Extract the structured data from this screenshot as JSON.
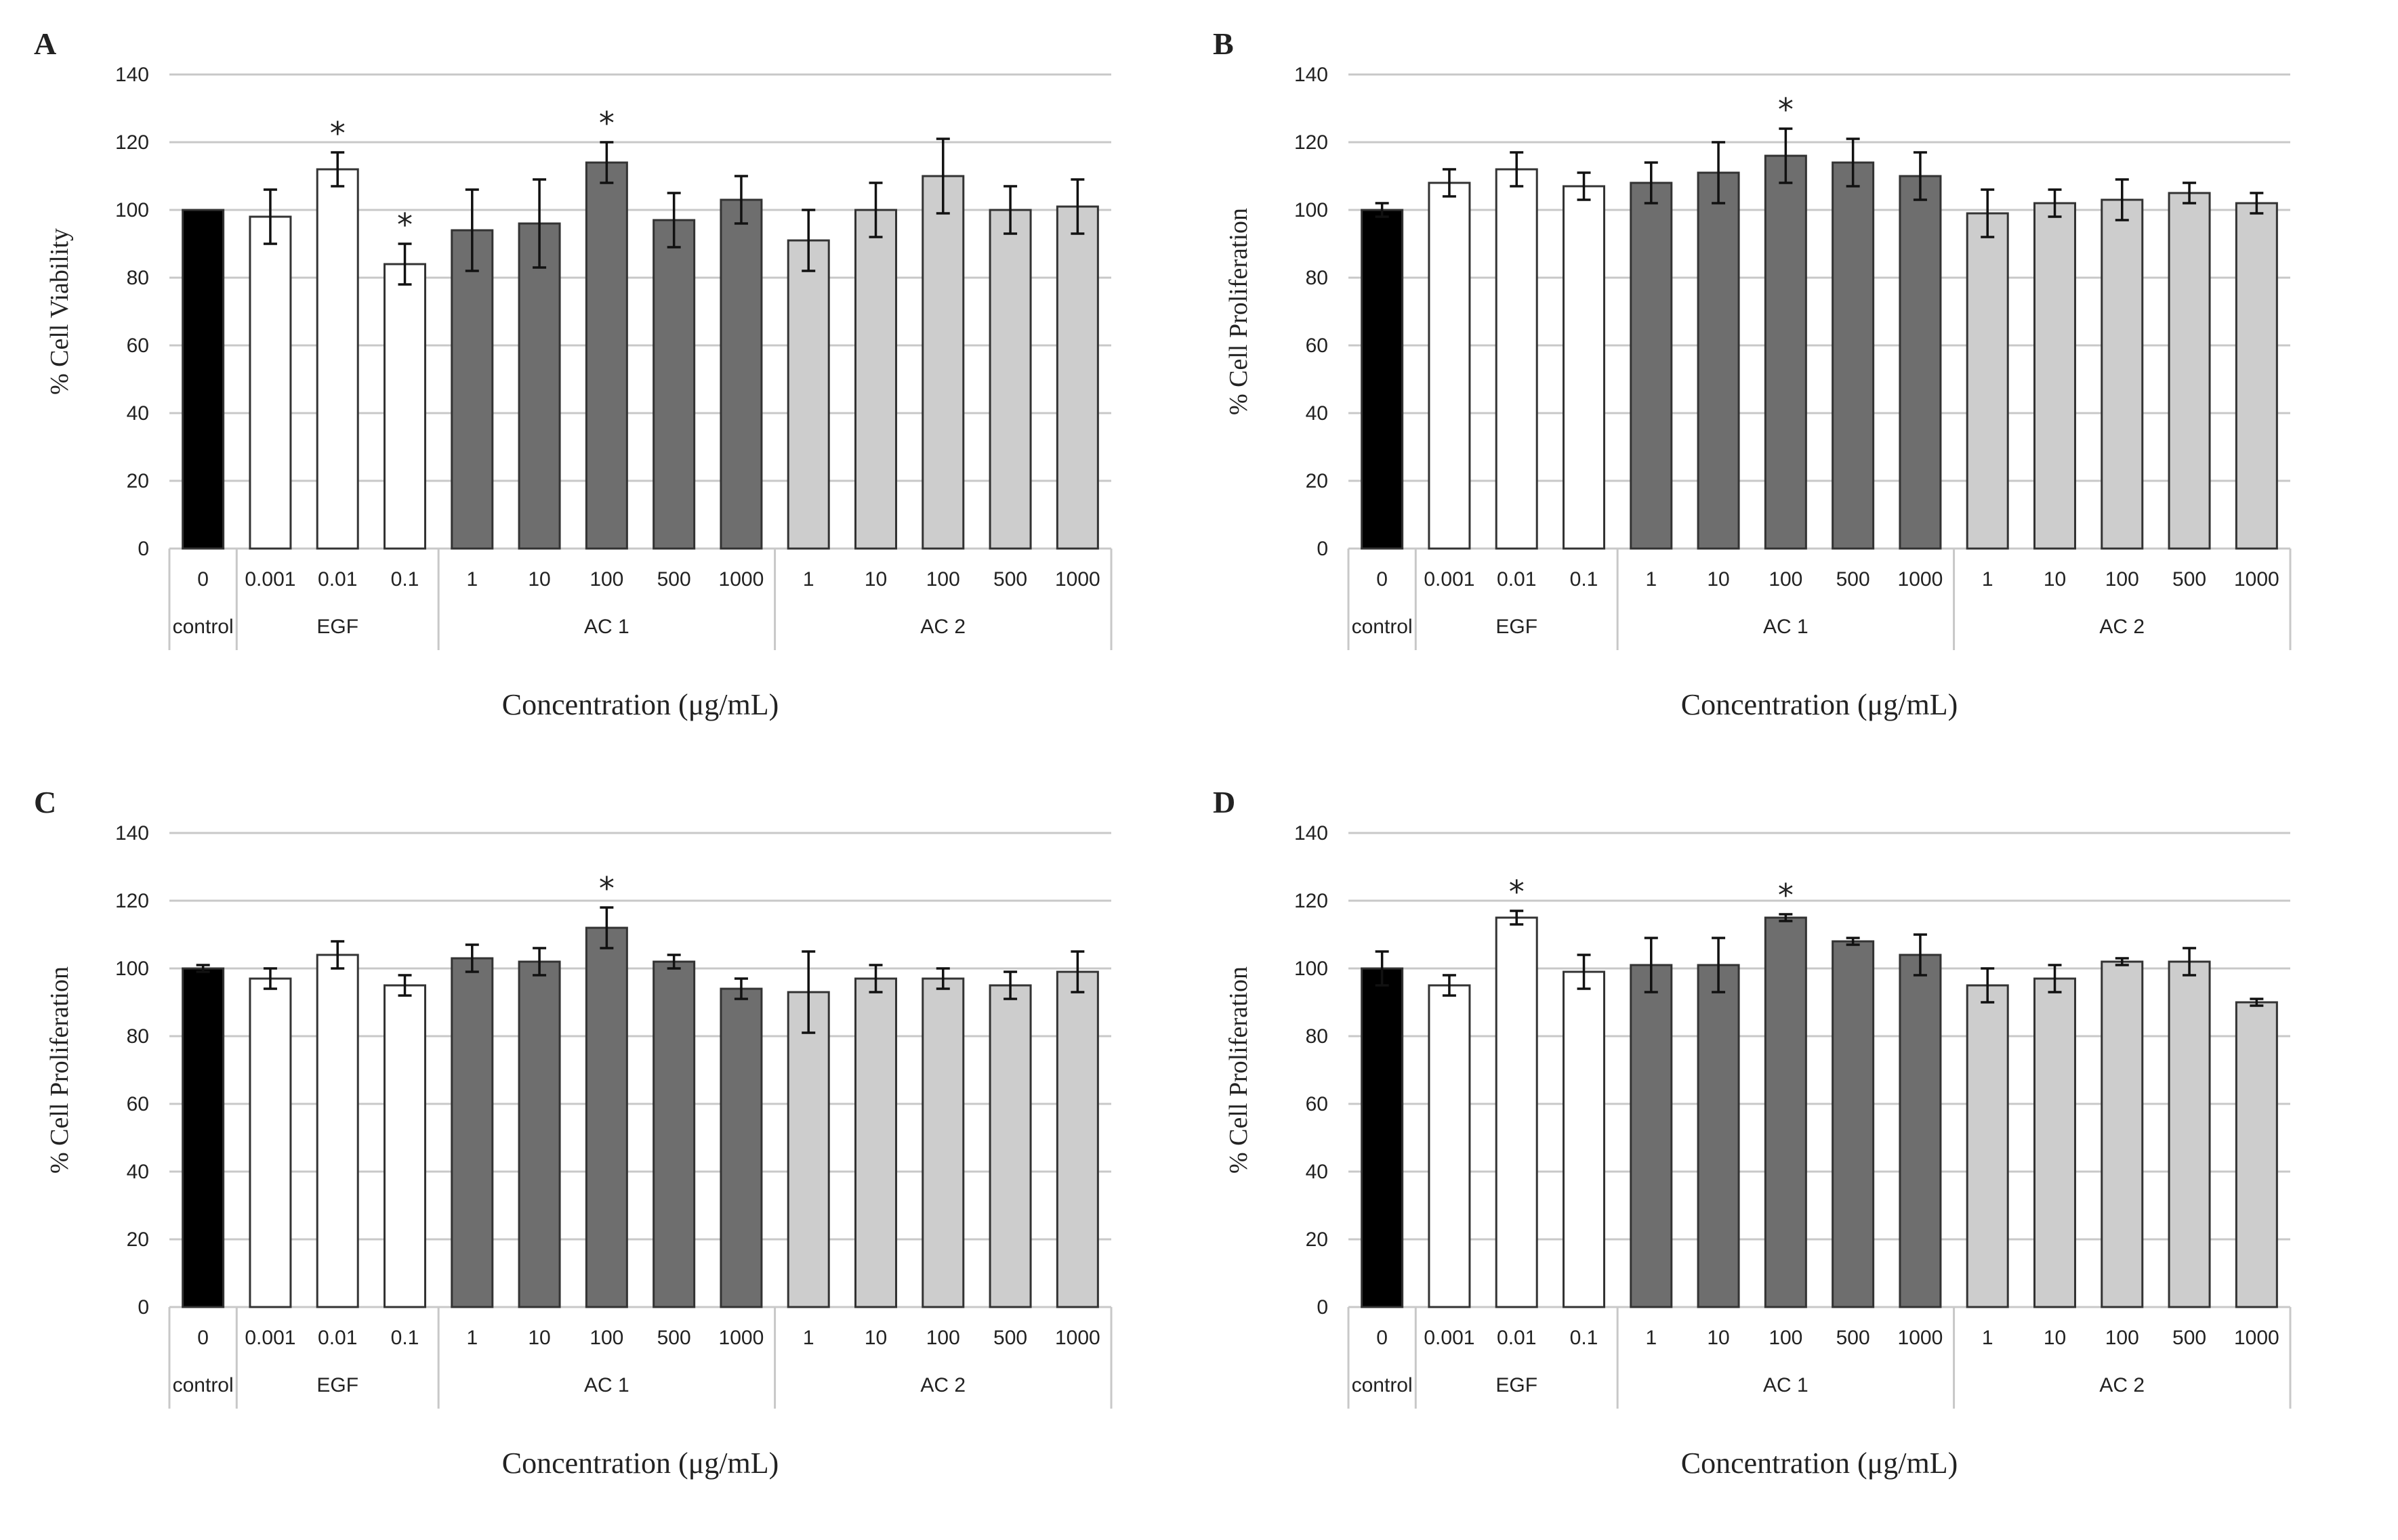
{
  "colors": {
    "control": "#000000",
    "EGF": "#ffffff",
    "AC 1": "#6e6e6e",
    "AC 2": "#cdcdcd",
    "grid": "#c8c8c8"
  },
  "chart_data": [
    {
      "panel": "A",
      "type": "bar",
      "ylabel": "% Cell Viability",
      "xlabel": "Concentration (μg/mL)",
      "ylim": [
        0,
        140
      ],
      "yticks": [
        0,
        20,
        40,
        60,
        80,
        100,
        120,
        140
      ],
      "groups": [
        {
          "name": "control",
          "categories": [
            "0"
          ],
          "values": [
            100
          ],
          "errors": [
            0
          ],
          "sig": [
            false
          ]
        },
        {
          "name": "EGF",
          "categories": [
            "0.001",
            "0.01",
            "0.1"
          ],
          "values": [
            98,
            112,
            84
          ],
          "errors": [
            8,
            5,
            6
          ],
          "sig": [
            false,
            true,
            true
          ]
        },
        {
          "name": "AC 1",
          "categories": [
            "1",
            "10",
            "100",
            "500",
            "1000"
          ],
          "values": [
            94,
            96,
            114,
            97,
            103
          ],
          "errors": [
            12,
            13,
            6,
            8,
            7
          ],
          "sig": [
            false,
            false,
            true,
            false,
            false
          ]
        },
        {
          "name": "AC 2",
          "categories": [
            "1",
            "10",
            "100",
            "500",
            "1000"
          ],
          "values": [
            91,
            100,
            110,
            100,
            101
          ],
          "errors": [
            9,
            8,
            11,
            7,
            8
          ],
          "sig": [
            false,
            false,
            false,
            false,
            false
          ]
        }
      ]
    },
    {
      "panel": "B",
      "type": "bar",
      "ylabel": "% Cell Proliferation",
      "xlabel": "Concentration (μg/mL)",
      "ylim": [
        0,
        140
      ],
      "yticks": [
        0,
        20,
        40,
        60,
        80,
        100,
        120,
        140
      ],
      "groups": [
        {
          "name": "control",
          "categories": [
            "0"
          ],
          "values": [
            100
          ],
          "errors": [
            2
          ],
          "sig": [
            false
          ]
        },
        {
          "name": "EGF",
          "categories": [
            "0.001",
            "0.01",
            "0.1"
          ],
          "values": [
            108,
            112,
            107
          ],
          "errors": [
            4,
            5,
            4
          ],
          "sig": [
            false,
            false,
            false
          ]
        },
        {
          "name": "AC 1",
          "categories": [
            "1",
            "10",
            "100",
            "500",
            "1000"
          ],
          "values": [
            108,
            111,
            116,
            114,
            110
          ],
          "errors": [
            6,
            9,
            8,
            7,
            7
          ],
          "sig": [
            false,
            false,
            true,
            false,
            false
          ]
        },
        {
          "name": "AC 2",
          "categories": [
            "1",
            "10",
            "100",
            "500",
            "1000"
          ],
          "values": [
            99,
            102,
            103,
            105,
            102
          ],
          "errors": [
            7,
            4,
            6,
            3,
            3
          ],
          "sig": [
            false,
            false,
            false,
            false,
            false
          ]
        }
      ]
    },
    {
      "panel": "C",
      "type": "bar",
      "ylabel": "% Cell Proliferation",
      "xlabel": "Concentration (μg/mL)",
      "ylim": [
        0,
        140
      ],
      "yticks": [
        0,
        20,
        40,
        60,
        80,
        100,
        120,
        140
      ],
      "groups": [
        {
          "name": "control",
          "categories": [
            "0"
          ],
          "values": [
            100
          ],
          "errors": [
            1
          ],
          "sig": [
            false
          ]
        },
        {
          "name": "EGF",
          "categories": [
            "0.001",
            "0.01",
            "0.1"
          ],
          "values": [
            97,
            104,
            95
          ],
          "errors": [
            3,
            4,
            3
          ],
          "sig": [
            false,
            false,
            false
          ]
        },
        {
          "name": "AC 1",
          "categories": [
            "1",
            "10",
            "100",
            "500",
            "1000"
          ],
          "values": [
            103,
            102,
            112,
            102,
            94
          ],
          "errors": [
            4,
            4,
            6,
            2,
            3
          ],
          "sig": [
            false,
            false,
            true,
            false,
            false
          ]
        },
        {
          "name": "AC 2",
          "categories": [
            "1",
            "10",
            "100",
            "500",
            "1000"
          ],
          "values": [
            93,
            97,
            97,
            95,
            99
          ],
          "errors": [
            12,
            4,
            3,
            4,
            6
          ],
          "sig": [
            false,
            false,
            false,
            false,
            false
          ]
        }
      ]
    },
    {
      "panel": "D",
      "type": "bar",
      "ylabel": "% Cell Proliferation",
      "xlabel": "Concentration (μg/mL)",
      "ylim": [
        0,
        140
      ],
      "yticks": [
        0,
        20,
        40,
        60,
        80,
        100,
        120,
        140
      ],
      "groups": [
        {
          "name": "control",
          "categories": [
            "0"
          ],
          "values": [
            100
          ],
          "errors": [
            5
          ],
          "sig": [
            false
          ]
        },
        {
          "name": "EGF",
          "categories": [
            "0.001",
            "0.01",
            "0.1"
          ],
          "values": [
            95,
            115,
            99
          ],
          "errors": [
            3,
            2,
            5
          ],
          "sig": [
            false,
            true,
            false
          ]
        },
        {
          "name": "AC 1",
          "categories": [
            "1",
            "10",
            "100",
            "500",
            "1000"
          ],
          "values": [
            101,
            101,
            115,
            108,
            104
          ],
          "errors": [
            8,
            8,
            1,
            1,
            6
          ],
          "sig": [
            false,
            false,
            true,
            false,
            false
          ]
        },
        {
          "name": "AC 2",
          "categories": [
            "1",
            "10",
            "100",
            "500",
            "1000"
          ],
          "values": [
            95,
            97,
            102,
            102,
            90
          ],
          "errors": [
            5,
            4,
            1,
            4,
            1
          ],
          "sig": [
            false,
            false,
            false,
            false,
            false
          ]
        }
      ]
    }
  ]
}
